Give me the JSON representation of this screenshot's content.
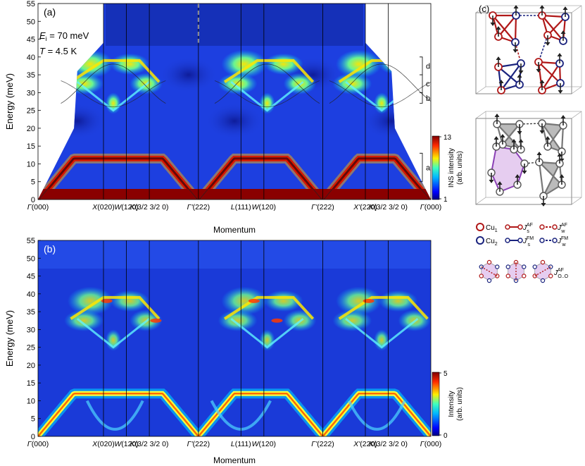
{
  "chart_data": [
    {
      "panel_label": "(a)",
      "type": "heatmap",
      "ylabel": "Energy (meV)",
      "xlabel": "Momentum",
      "ylim": [
        0,
        55
      ],
      "yticks": [
        0,
        5,
        10,
        15,
        20,
        25,
        30,
        35,
        40,
        45,
        50,
        55
      ],
      "q_labels": [
        "Γ(000)",
        "X(020)",
        "W(120)",
        "K(3/2 3/2 0)",
        "Γ'(222)",
        "L(111)",
        "W(120)",
        "Γ'(222)",
        "X'(220)",
        "K(3/2 3/2 0)",
        "Γ(000)"
      ],
      "q_positions": [
        0,
        1,
        1.35,
        1.7,
        2.45,
        3.1,
        3.45,
        4.35,
        5.0,
        5.35,
        6.0
      ],
      "annotations": {
        "ei_label": "E",
        "ei_sub": "i",
        "ei_value": " = 70 meV",
        "t_label": "T",
        "t_value": " = 4.5 K"
      },
      "bands": [
        "d",
        "c",
        "b",
        "a"
      ],
      "colorbar": {
        "label": "INS intensity (arb. units)",
        "ticks": [
          1,
          13
        ]
      },
      "features": {
        "acoustic_max_mev": 12,
        "upper_band_range_mev": [
          25,
          40
        ],
        "background_top_mev": 50
      }
    },
    {
      "panel_label": "(b)",
      "type": "heatmap",
      "ylabel": "Energy (meV)",
      "xlabel": "Momentum",
      "ylim": [
        0,
        55
      ],
      "yticks": [
        0,
        5,
        10,
        15,
        20,
        25,
        30,
        35,
        40,
        45,
        50,
        55
      ],
      "q_labels": [
        "Γ(000)",
        "X(020)",
        "W(120)",
        "K(3/2 3/2 0)",
        "Γ'(222)",
        "L(111)",
        "W(120)",
        "Γ'(222)",
        "X'(220)",
        "K(3/2 3/2 0)",
        "Γ(000)"
      ],
      "colorbar": {
        "label": "Intensity (arb. units)",
        "ticks": [
          0,
          5
        ]
      }
    }
  ],
  "panel_c": {
    "label": "(c)",
    "legend": {
      "cu1": "Cu",
      "cu1_sub": "1",
      "cu2": "Cu",
      "cu2_sub": "2",
      "js_af": "J",
      "js_af_sub": "s",
      "js_af_sup": "AF",
      "jw_af": "J",
      "jw_af_sub": "w",
      "jw_af_sup": "AF",
      "js_fm": "J",
      "js_fm_sub": "s",
      "js_fm_sup": "FM",
      "jw_fm": "J",
      "jw_fm_sub": "w",
      "jw_fm_sup": "FM",
      "joo": "J",
      "joo_sub": "O..O",
      "joo_sup": "AF"
    },
    "colors": {
      "cu1": "#b01818",
      "cu2": "#1a237e",
      "hex_fill": "#e6cdf0",
      "hex_edge": "#8a3fb5",
      "grey": "#777777"
    }
  }
}
